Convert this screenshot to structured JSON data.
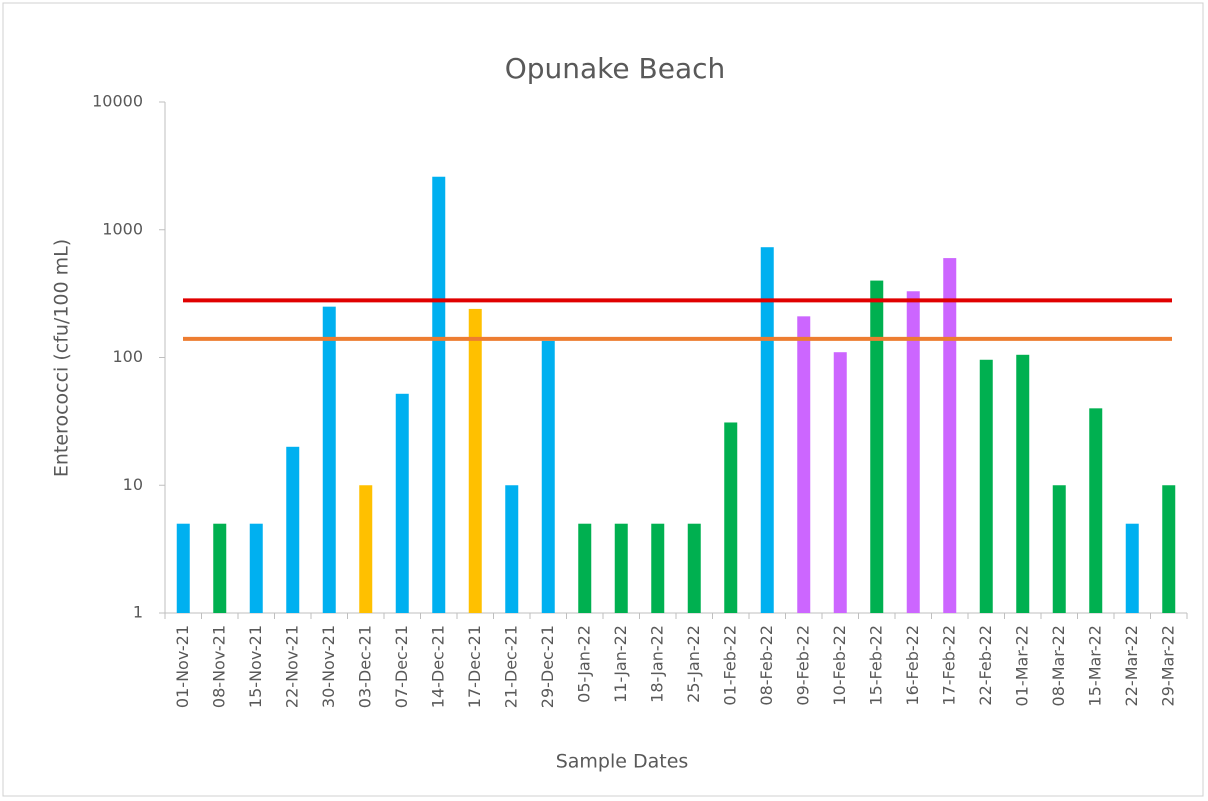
{
  "chart_data": {
    "type": "bar",
    "title": "Opunake Beach",
    "xlabel": "Sample Dates",
    "ylabel": "Enterococci (cfu/100 mL)",
    "categories": [
      "01-Nov-21",
      "08-Nov-21",
      "15-Nov-21",
      "22-Nov-21",
      "30-Nov-21",
      "03-Dec-21",
      "07-Dec-21",
      "14-Dec-21",
      "17-Dec-21",
      "21-Dec-21",
      "29-Dec-21",
      "05-Jan-22",
      "11-Jan-22",
      "18-Jan-22",
      "25-Jan-22",
      "01-Feb-22",
      "08-Feb-22",
      "09-Feb-22",
      "10-Feb-22",
      "15-Feb-22",
      "16-Feb-22",
      "17-Feb-22",
      "22-Feb-22",
      "01-Mar-22",
      "08-Mar-22",
      "15-Mar-22",
      "22-Mar-22",
      "29-Mar-22"
    ],
    "values": [
      5,
      5,
      5,
      20,
      250,
      10,
      52,
      2600,
      240,
      10,
      135,
      5,
      5,
      5,
      5,
      31,
      730,
      210,
      110,
      400,
      330,
      600,
      96,
      105,
      10,
      40,
      5,
      10
    ],
    "colors": [
      "#00b0f0",
      "#00b050",
      "#00b0f0",
      "#00b0f0",
      "#00b0f0",
      "#ffc000",
      "#00b0f0",
      "#00b0f0",
      "#ffc000",
      "#00b0f0",
      "#00b0f0",
      "#00b050",
      "#00b050",
      "#00b050",
      "#00b050",
      "#00b050",
      "#00b0f0",
      "#cc66ff",
      "#cc66ff",
      "#00b050",
      "#cc66ff",
      "#cc66ff",
      "#00b050",
      "#00b050",
      "#00b050",
      "#00b050",
      "#00b0f0",
      "#00b050"
    ],
    "reference_lines": [
      {
        "value": 280,
        "color": "#e00000"
      },
      {
        "value": 140,
        "color": "#ed7d31"
      }
    ],
    "log_scale": true,
    "ylim": [
      1,
      10000
    ],
    "yticks": [
      1,
      10,
      100,
      1000,
      10000
    ]
  }
}
